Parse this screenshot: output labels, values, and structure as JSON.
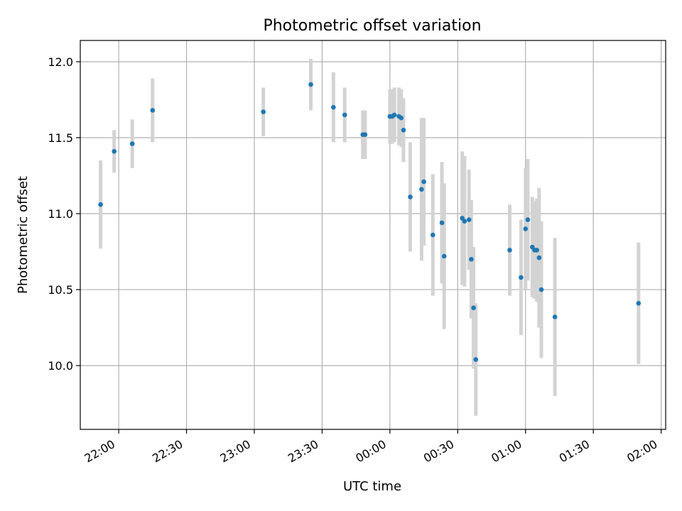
{
  "chart_data": {
    "type": "scatter",
    "title": "Photometric offset variation",
    "xlabel": "UTC time",
    "ylabel": "Photometric offset",
    "x_ticks": [
      "22:00",
      "22:30",
      "23:00",
      "23:30",
      "00:00",
      "00:30",
      "01:00",
      "01:30",
      "02:00"
    ],
    "y_ticks": [
      "10.0",
      "10.5",
      "11.0",
      "11.5",
      "12.0"
    ],
    "xlim": [
      "21:43",
      "02:02"
    ],
    "ylim": [
      9.58,
      12.14
    ],
    "grid": true,
    "colors": {
      "point": "#1f77b4",
      "errorbar": "#d3d3d3",
      "grid": "#b0b0b0"
    },
    "series": [
      {
        "points": [
          {
            "t": "21:52",
            "y": 11.06,
            "err": 0.29
          },
          {
            "t": "21:58",
            "y": 11.41,
            "err": 0.14
          },
          {
            "t": "22:06",
            "y": 11.46,
            "err": 0.16
          },
          {
            "t": "22:15",
            "y": 11.68,
            "err": 0.21
          },
          {
            "t": "23:04",
            "y": 11.67,
            "err": 0.16
          },
          {
            "t": "23:25",
            "y": 11.85,
            "err": 0.17
          },
          {
            "t": "23:35",
            "y": 11.7,
            "err": 0.23
          },
          {
            "t": "23:40",
            "y": 11.65,
            "err": 0.18
          },
          {
            "t": "23:48",
            "y": 11.52,
            "err": 0.16
          },
          {
            "t": "23:49",
            "y": 11.52,
            "err": 0.16
          },
          {
            "t": "00:00",
            "y": 11.64,
            "err": 0.18
          },
          {
            "t": "00:01",
            "y": 11.64,
            "err": 0.18
          },
          {
            "t": "00:02",
            "y": 11.65,
            "err": 0.18
          },
          {
            "t": "00:04",
            "y": 11.64,
            "err": 0.19
          },
          {
            "t": "00:05",
            "y": 11.63,
            "err": 0.19
          },
          {
            "t": "00:06",
            "y": 11.55,
            "err": 0.21
          },
          {
            "t": "00:09",
            "y": 11.11,
            "err": 0.36
          },
          {
            "t": "00:14",
            "y": 11.16,
            "err": 0.47
          },
          {
            "t": "00:15",
            "y": 11.21,
            "err": 0.42
          },
          {
            "t": "00:19",
            "y": 10.86,
            "err": 0.4
          },
          {
            "t": "00:23",
            "y": 10.94,
            "err": 0.4
          },
          {
            "t": "00:24",
            "y": 10.72,
            "err": 0.48
          },
          {
            "t": "00:32",
            "y": 10.97,
            "err": 0.44
          },
          {
            "t": "00:33",
            "y": 10.95,
            "err": 0.43
          },
          {
            "t": "00:35",
            "y": 10.96,
            "err": 0.33
          },
          {
            "t": "00:36",
            "y": 10.7,
            "err": 0.39
          },
          {
            "t": "00:37",
            "y": 10.38,
            "err": 0.4
          },
          {
            "t": "00:38",
            "y": 10.04,
            "err": 0.37
          },
          {
            "t": "00:53",
            "y": 10.76,
            "err": 0.3
          },
          {
            "t": "00:58",
            "y": 10.58,
            "err": 0.38
          },
          {
            "t": "01:00",
            "y": 10.9,
            "err": 0.4
          },
          {
            "t": "01:01",
            "y": 10.96,
            "err": 0.4
          },
          {
            "t": "01:03",
            "y": 10.78,
            "err": 0.33
          },
          {
            "t": "01:04",
            "y": 10.76,
            "err": 0.32
          },
          {
            "t": "01:05",
            "y": 10.76,
            "err": 0.34
          },
          {
            "t": "01:06",
            "y": 10.71,
            "err": 0.46
          },
          {
            "t": "01:07",
            "y": 10.5,
            "err": 0.45
          },
          {
            "t": "01:13",
            "y": 10.32,
            "err": 0.52
          },
          {
            "t": "01:50",
            "y": 10.41,
            "err": 0.4
          }
        ]
      }
    ]
  }
}
